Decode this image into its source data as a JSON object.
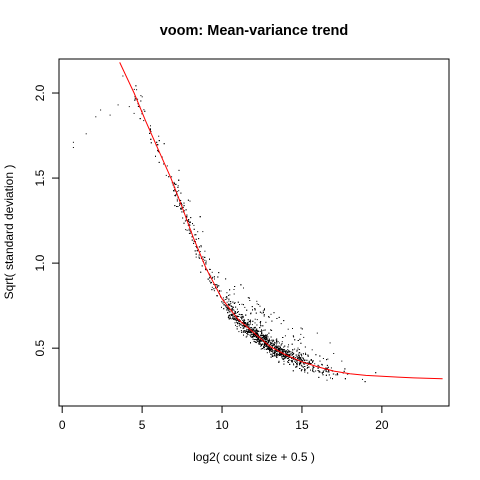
{
  "chart_data": {
    "type": "scatter",
    "title": "voom: Mean-variance trend",
    "xlabel": "log2( count size + 0.5 )",
    "ylabel": "Sqrt( standard deviation )",
    "xlim": [
      -0.2,
      24.2
    ],
    "ylim": [
      0.16,
      2.2
    ],
    "xticks": [
      0,
      5,
      10,
      15,
      20
    ],
    "yticks": [
      0.5,
      1.0,
      1.5,
      2.0
    ],
    "xtick_labels": [
      "0",
      "5",
      "10",
      "15",
      "20"
    ],
    "ytick_labels": [
      "0.5",
      "1.0",
      "1.5",
      "2.0"
    ],
    "grid": false,
    "legend": "none",
    "colors": {
      "points": "#000000",
      "trend": "#ff0000",
      "axes": "#000000"
    },
    "trend_line": {
      "x": [
        3.6,
        4.5,
        5.2,
        6.0,
        6.8,
        7.5,
        8.2,
        9.0,
        10.0,
        11.0,
        12.0,
        13.0,
        14.0,
        15.0,
        16.0,
        17.0,
        18.0,
        19.0,
        20.0,
        21.0,
        22.0,
        23.8
      ],
      "y": [
        2.18,
        2.0,
        1.84,
        1.67,
        1.5,
        1.33,
        1.15,
        0.97,
        0.79,
        0.67,
        0.59,
        0.51,
        0.46,
        0.42,
        0.39,
        0.365,
        0.35,
        0.34,
        0.335,
        0.33,
        0.325,
        0.32
      ]
    },
    "points": {
      "x": [
        0.7,
        1.5,
        2.1,
        2.4,
        3.0,
        3.5,
        3.8,
        4.2,
        4.5,
        0.7
      ],
      "y": [
        1.71,
        1.76,
        1.86,
        1.9,
        1.87,
        1.93,
        2.1,
        1.92,
        1.88,
        1.68
      ]
    }
  }
}
